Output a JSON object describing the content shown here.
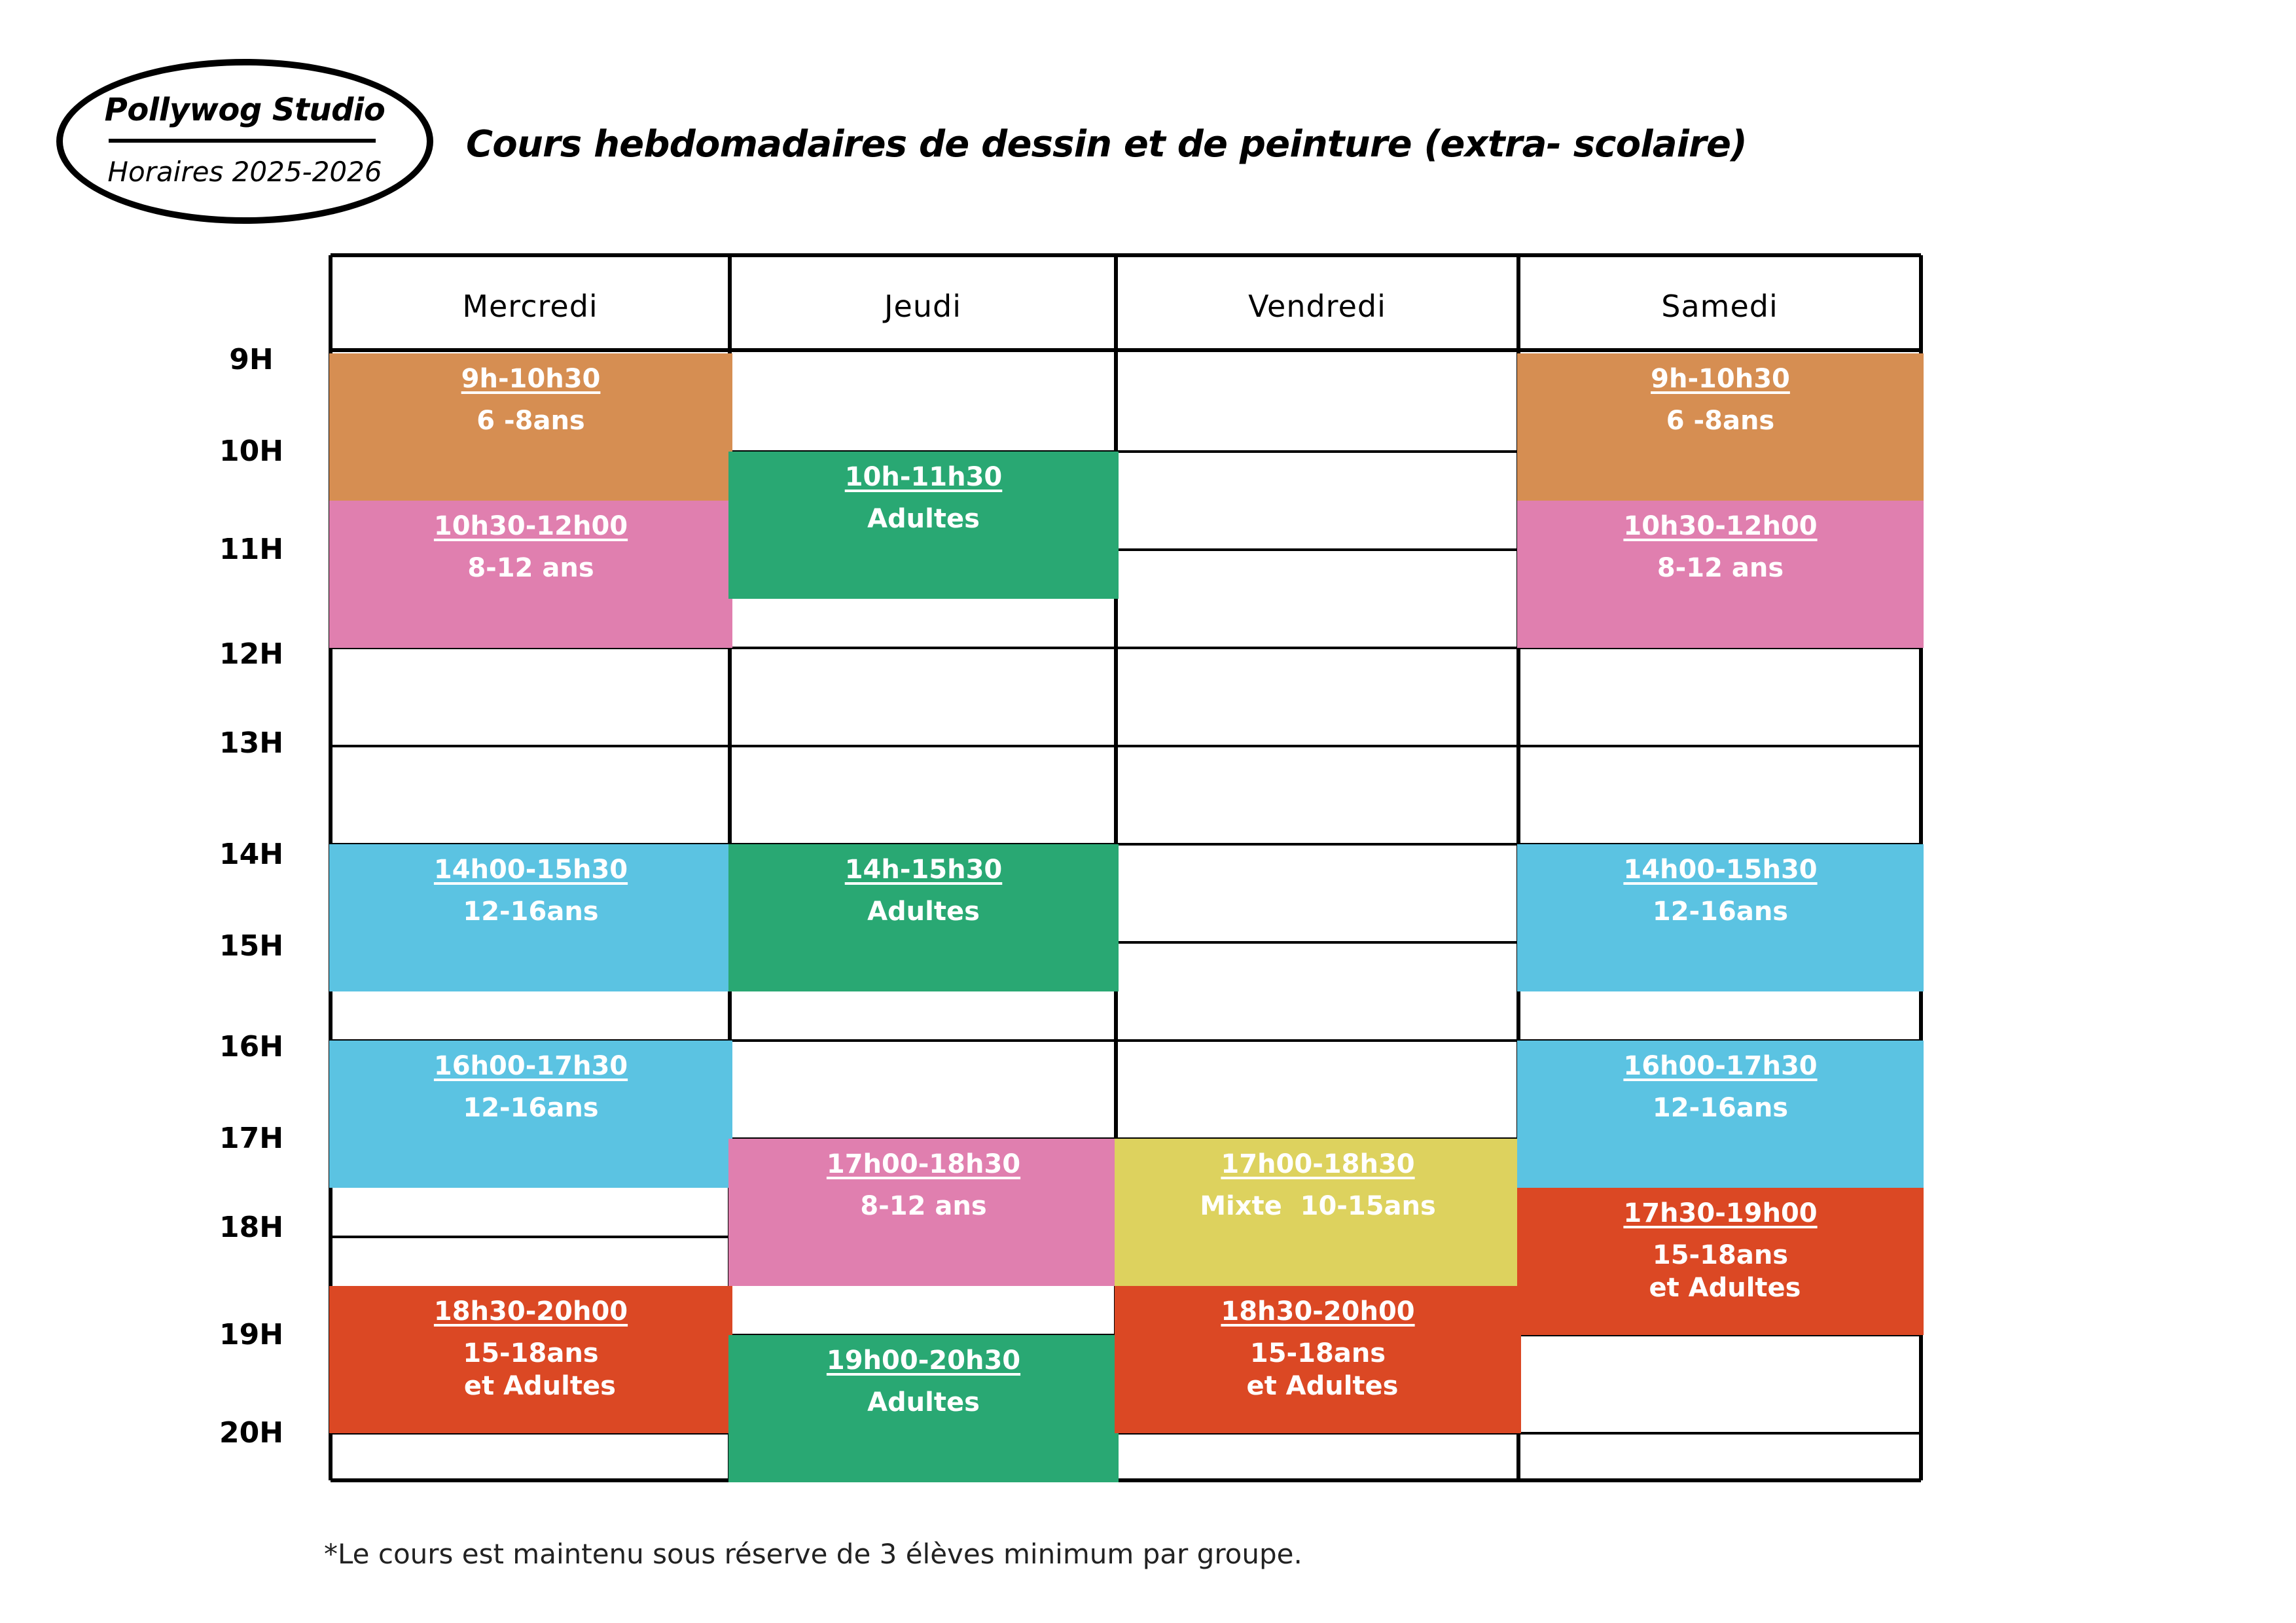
{
  "brand": {
    "name": "Pollywog Studio",
    "subtitle": "Horaires 2025-2026"
  },
  "title": "Cours hebdomadaires de dessin et de peinture (extra- scolaire)",
  "days": [
    "Mercredi",
    "Jeudi",
    "Vendredi",
    "Samedi"
  ],
  "hours": [
    "9H",
    "10H",
    "11H",
    "12H",
    "13H",
    "14H",
    "15H",
    "16H",
    "17H",
    "18H",
    "19H",
    "20H"
  ],
  "colors": {
    "orange": "#D68E52",
    "pink": "#E07FAF",
    "green": "#29A873",
    "blue": "#5BC3E2",
    "yellow": "#DDD25E",
    "red": "#DB4824"
  },
  "classes": [
    {
      "day": "Mercredi",
      "time": "9h-10h30",
      "audience": "6 -8ans",
      "color": "orange"
    },
    {
      "day": "Mercredi",
      "time": "10h30-12h00",
      "audience": "8-12 ans",
      "color": "pink"
    },
    {
      "day": "Mercredi",
      "time": "14h00-15h30",
      "audience": "12-16ans",
      "color": "blue"
    },
    {
      "day": "Mercredi",
      "time": "16h00-17h30",
      "audience": "12-16ans",
      "color": "blue"
    },
    {
      "day": "Mercredi",
      "time": "18h30-20h00",
      "audience": "15-18ans\n  et Adultes",
      "color": "red"
    },
    {
      "day": "Jeudi",
      "time": "10h-11h30",
      "audience": "Adultes",
      "color": "green"
    },
    {
      "day": "Jeudi",
      "time": "14h-15h30",
      "audience": "Adultes",
      "color": "green"
    },
    {
      "day": "Jeudi",
      "time": "17h00-18h30",
      "audience": "8-12 ans",
      "color": "pink"
    },
    {
      "day": "Jeudi",
      "time": "19h00-20h30",
      "audience": "Adultes",
      "color": "green"
    },
    {
      "day": "Vendredi",
      "time": "17h00-18h30",
      "audience": "Mixte  10-15ans",
      "color": "yellow"
    },
    {
      "day": "Vendredi",
      "time": "18h30-20h00",
      "audience": "15-18ans\n et Adultes",
      "color": "red"
    },
    {
      "day": "Samedi",
      "time": "9h-10h30",
      "audience": "6 -8ans",
      "color": "orange"
    },
    {
      "day": "Samedi",
      "time": "10h30-12h00",
      "audience": "8-12 ans",
      "color": "pink"
    },
    {
      "day": "Samedi",
      "time": "14h00-15h30",
      "audience": "12-16ans",
      "color": "blue"
    },
    {
      "day": "Samedi",
      "time": "16h00-17h30",
      "audience": "12-16ans",
      "color": "blue"
    },
    {
      "day": "Samedi",
      "time": "17h30-19h00",
      "audience": "15-18ans\n et Adultes",
      "color": "red"
    }
  ],
  "footnote": "*Le cours est maintenu sous réserve de 3 élèves minimum par groupe."
}
